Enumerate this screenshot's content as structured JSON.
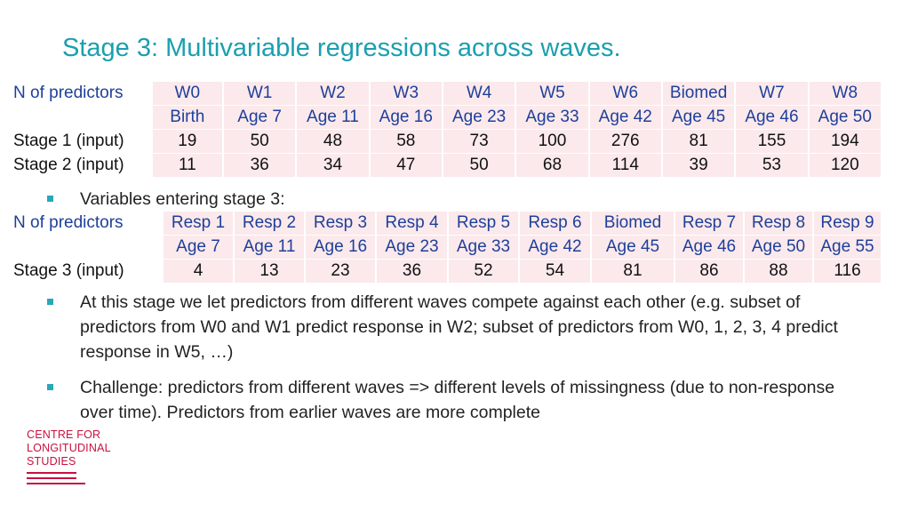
{
  "title": "Stage 3: Multivariable regressions across waves.",
  "table1": {
    "corner_label": "N of predictors",
    "waves": [
      "W0",
      "W1",
      "W2",
      "W3",
      "W4",
      "W5",
      "W6",
      "Biomed",
      "W7",
      "W8"
    ],
    "ages": [
      "Birth",
      "Age 7",
      "Age 11",
      "Age 16",
      "Age 23",
      "Age 33",
      "Age 42",
      "Age 45",
      "Age 46",
      "Age 50"
    ],
    "rows": [
      {
        "label": "Stage 1 (input)",
        "values": [
          "19",
          "50",
          "48",
          "58",
          "73",
          "100",
          "276",
          "81",
          "155",
          "194"
        ]
      },
      {
        "label": "Stage 2 (input)",
        "values": [
          "11",
          "36",
          "34",
          "47",
          "50",
          "68",
          "114",
          "39",
          "53",
          "120"
        ]
      }
    ]
  },
  "bullet1": "Variables entering stage 3:",
  "table2": {
    "corner_label": "N of predictors",
    "responses": [
      "Resp 1",
      "Resp 2",
      "Resp 3",
      "Resp 4",
      "Resp 5",
      "Resp 6",
      "Biomed",
      "Resp 7",
      "Resp 8",
      "Resp 9"
    ],
    "ages": [
      "Age 7",
      "Age 11",
      "Age 16",
      "Age 23",
      "Age 33",
      "Age 42",
      "Age 45",
      "Age 46",
      "Age 50",
      "Age 55"
    ],
    "rows": [
      {
        "label": "Stage 3 (input)",
        "values": [
          "4",
          "13",
          "23",
          "36",
          "52",
          "54",
          "81",
          "86",
          "88",
          "116"
        ]
      }
    ]
  },
  "bullet2": "At this stage we let predictors from different waves compete against each other (e.g. subset of predictors from W0 and W1 predict response in W2; subset of predictors from W0, 1, 2, 3, 4 predict response in W5, …)",
  "bullet3": "Challenge: predictors from different waves => different levels of missingness (due to non-response over time). Predictors from earlier waves are more complete",
  "logo": {
    "line1": "CENTRE FOR",
    "line2": "LONGITUDINAL",
    "line3": "STUDIES"
  },
  "colors": {
    "title": "#1a9fb0",
    "header_text": "#1f3f9a",
    "cell_fill": "#fbe9ec",
    "bullet_marker": "#2aa7b8",
    "logo": "#c8103e"
  }
}
